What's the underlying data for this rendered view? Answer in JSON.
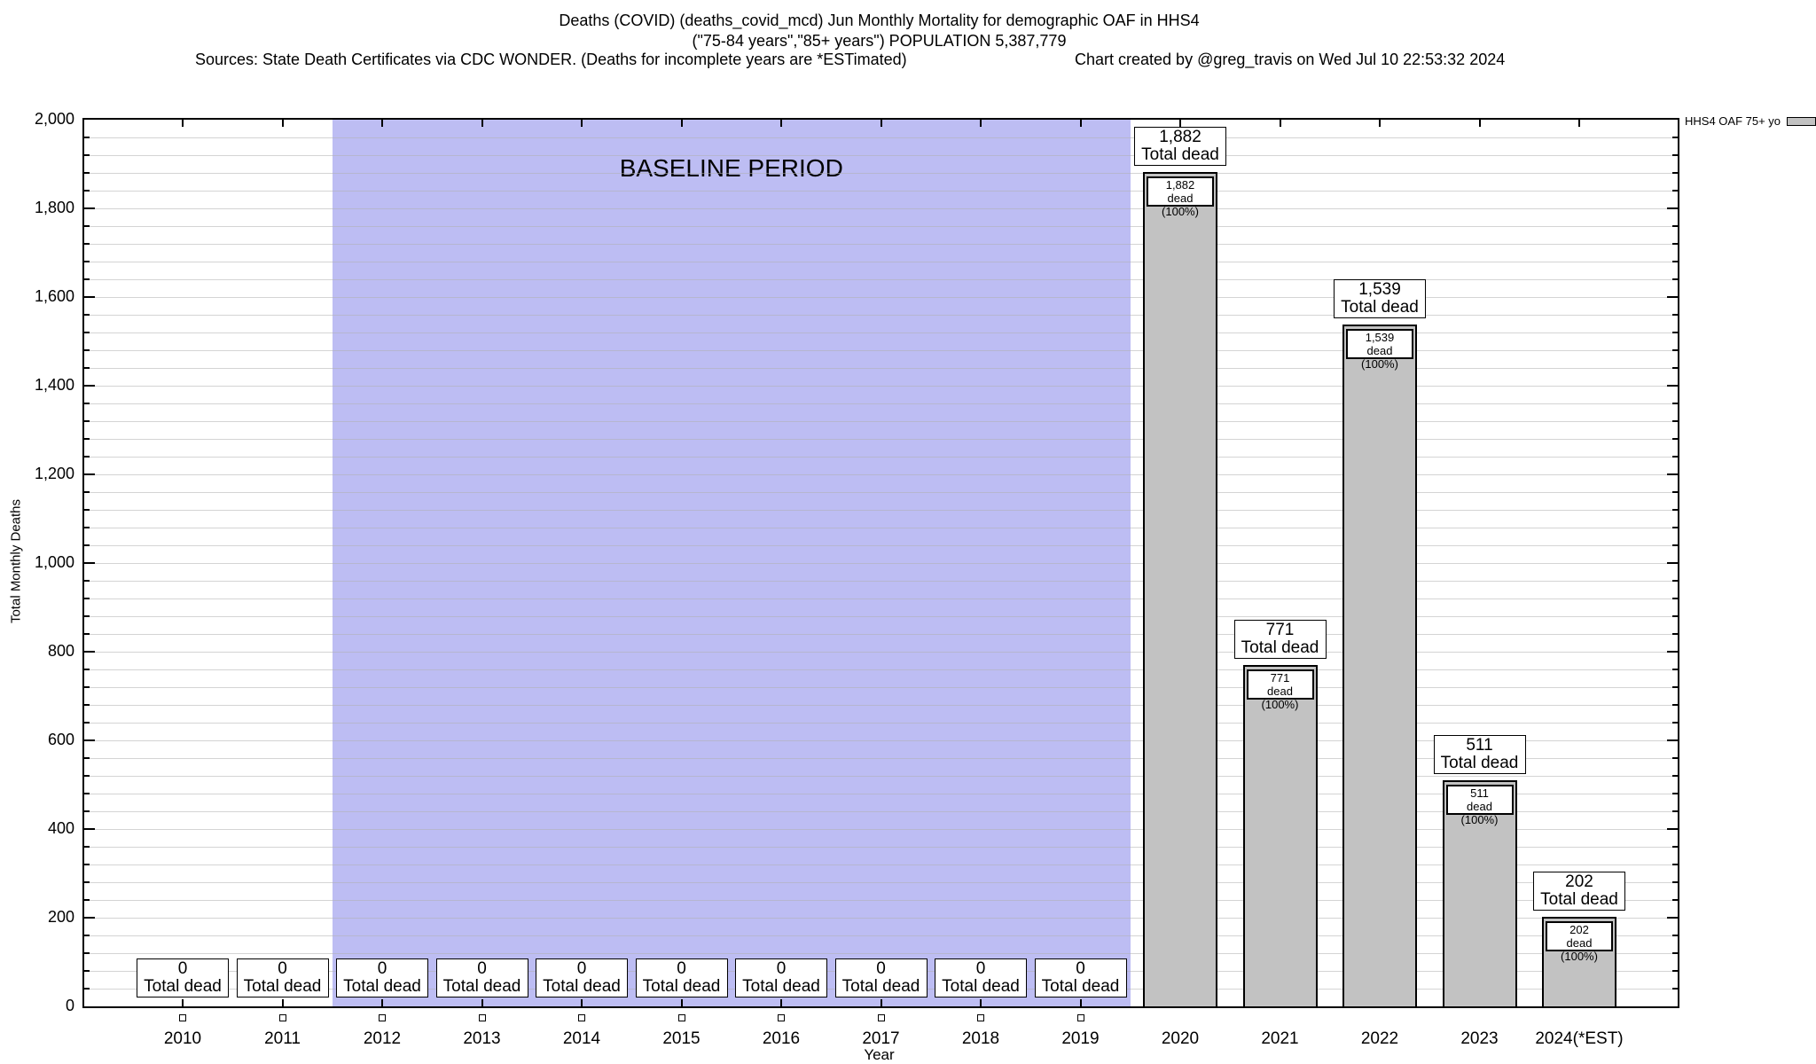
{
  "chart_data": {
    "type": "bar",
    "title": "Deaths (COVID) (deaths_covid_mcd) Jun Monthly Mortality for demographic OAF in HHS4",
    "subtitle": "(\"75-84 years\",\"85+ years\") POPULATION 5,387,779",
    "source_note": "Sources: State Death Certificates via CDC WONDER. (Deaths for incomplete years are *ESTimated)",
    "created_by": "Chart created by @greg_travis on Wed Jul 10 22:53:32 2024",
    "xlabel": "Year",
    "ylabel": "Total Monthly Deaths",
    "ylim": [
      0,
      2000
    ],
    "ytick_step": 200,
    "minor_gridline_step": 40,
    "grid": "horizontal",
    "ytick_labels": [
      "0",
      "200",
      "400",
      "600",
      "800",
      "1,000",
      "1,200",
      "1,400",
      "1,600",
      "1,800",
      "2,000"
    ],
    "categories": [
      "2010",
      "2011",
      "2012",
      "2013",
      "2014",
      "2015",
      "2016",
      "2017",
      "2018",
      "2019",
      "2020",
      "2021",
      "2022",
      "2023",
      "2024(*EST)"
    ],
    "values": [
      0,
      0,
      0,
      0,
      0,
      0,
      0,
      0,
      0,
      0,
      1882,
      771,
      1539,
      511,
      202
    ],
    "value_labels": [
      "0",
      "0",
      "0",
      "0",
      "0",
      "0",
      "0",
      "0",
      "0",
      "0",
      "1,882",
      "771",
      "1,539",
      "511",
      "202"
    ],
    "bar_total_label_suffix": "Total dead",
    "bar_inner_label_suffix": "dead (100%)",
    "baseline": {
      "label": "BASELINE PERIOD",
      "start_category": "2012",
      "end_category": "2019"
    },
    "legend_label": "HHS4 OAF 75+ yo",
    "legend_position": "top-right",
    "colors": {
      "bar_fill": "#c2c2c2",
      "baseline_fill": "#bdbdf3",
      "gridline": "#b0b0b0",
      "axis": "#000000"
    }
  }
}
